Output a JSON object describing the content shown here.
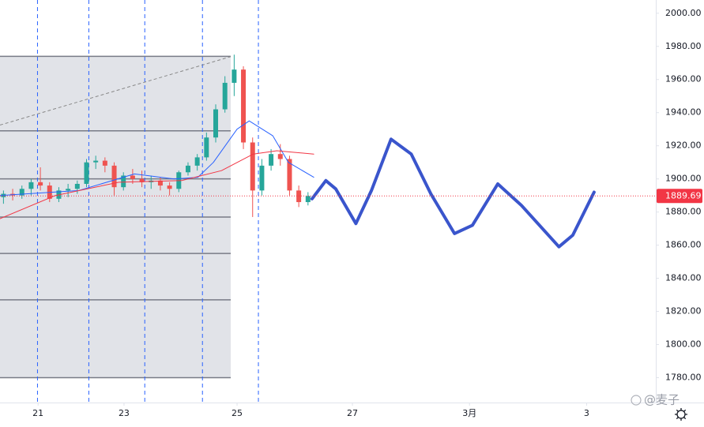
{
  "chart_data": {
    "type": "candlestick",
    "xlim": [
      -0.66,
      10.71
    ],
    "ylim": [
      1765,
      2008
    ],
    "xticks": [
      {
        "value": 0,
        "label": "21"
      },
      {
        "value": 1.49,
        "label": "23"
      },
      {
        "value": 3.45,
        "label": "25"
      },
      {
        "value": 5.45,
        "label": "27"
      },
      {
        "value": 7.48,
        "label": "3月"
      },
      {
        "value": 9.51,
        "label": "3"
      }
    ],
    "yticks": [
      {
        "value": 1780,
        "label": "1780.00"
      },
      {
        "value": 1800,
        "label": "1800.00"
      },
      {
        "value": 1820,
        "label": "1820.00"
      },
      {
        "value": 1840,
        "label": "1840.00"
      },
      {
        "value": 1860,
        "label": "1860.00"
      },
      {
        "value": 1880,
        "label": "1880.00"
      },
      {
        "value": 1900,
        "label": "1900.00"
      },
      {
        "value": 1920,
        "label": "1920.00"
      },
      {
        "value": 1940,
        "label": "1940.00"
      },
      {
        "value": 1960,
        "label": "1960.00"
      },
      {
        "value": 1980,
        "label": "1980.00"
      },
      {
        "value": 2000,
        "label": "2000.00"
      }
    ],
    "grid": false,
    "up_color": "#26a69a",
    "down_color": "#ef5350",
    "candles": {
      "x": [
        -0.6,
        -0.44,
        -0.28,
        -0.12,
        0.04,
        0.2,
        0.36,
        0.52,
        0.68,
        0.84,
        1.0,
        1.16,
        1.32,
        1.48,
        1.64,
        1.8,
        1.96,
        2.12,
        2.28,
        2.44,
        2.6,
        2.76,
        2.92,
        3.08,
        3.24,
        3.4,
        3.56,
        3.72,
        3.88,
        4.04,
        4.2,
        4.36,
        4.52,
        4.68
      ],
      "open": [
        1889,
        1891,
        1890,
        1894,
        1898,
        1896,
        1888,
        1893,
        1894,
        1897,
        1910,
        1911,
        1908,
        1895,
        1902,
        1900,
        1898,
        1899,
        1896,
        1894,
        1904,
        1908,
        1913,
        1925,
        1942,
        1958,
        1966,
        1922,
        1893,
        1908,
        1915,
        1912,
        1893,
        1886
      ],
      "high": [
        1893,
        1894,
        1896,
        1900,
        1907,
        1898,
        1895,
        1897,
        1899,
        1912,
        1914,
        1913,
        1910,
        1904,
        1906,
        1905,
        1902,
        1901,
        1898,
        1905,
        1910,
        1915,
        1928,
        1945,
        1962,
        1975,
        1968,
        1925,
        1912,
        1918,
        1921,
        1914,
        1896,
        1892
      ],
      "low": [
        1885,
        1887,
        1888,
        1890,
        1893,
        1886,
        1886,
        1889,
        1891,
        1895,
        1906,
        1904,
        1890,
        1893,
        1897,
        1895,
        1894,
        1893,
        1890,
        1892,
        1902,
        1905,
        1911,
        1922,
        1940,
        1950,
        1918,
        1877,
        1890,
        1905,
        1908,
        1890,
        1883,
        1884
      ],
      "close": [
        1891,
        1890,
        1894,
        1898,
        1896,
        1888,
        1893,
        1894,
        1897,
        1910,
        1911,
        1908,
        1895,
        1902,
        1900,
        1898,
        1899,
        1896,
        1894,
        1904,
        1908,
        1913,
        1925,
        1942,
        1958,
        1966,
        1922,
        1893,
        1908,
        1915,
        1912,
        1893,
        1886,
        1889.69
      ]
    },
    "moving_averages": [
      {
        "color": "#2962ff",
        "x": [
          -0.66,
          0.71,
          1.67,
          2.36,
          2.77,
          3.04,
          3.45,
          3.66,
          4.07,
          4.34,
          4.78
        ],
        "values": [
          1890,
          1893,
          1903,
          1900,
          1901,
          1910,
          1930,
          1935,
          1926,
          1910,
          1901
        ]
      },
      {
        "color": "#f23645",
        "x": [
          -0.66,
          0.3,
          1.4,
          2.49,
          3.18,
          3.73,
          4.14,
          4.78
        ],
        "values": [
          1876,
          1890,
          1898,
          1899,
          1905,
          1915,
          1917,
          1915
        ]
      }
    ],
    "projection": {
      "color": "#3a55cc",
      "x": [
        4.75,
        4.99,
        5.16,
        5.51,
        5.78,
        6.12,
        6.47,
        6.81,
        7.22,
        7.53,
        7.97,
        8.38,
        9.03,
        9.27,
        9.64
      ],
      "values": [
        1888,
        1899,
        1894,
        1873,
        1893,
        1924,
        1915,
        1891,
        1867,
        1872,
        1897,
        1884,
        1859,
        1866,
        1892
      ]
    },
    "range_box": {
      "x_end": 3.34,
      "levels": [
        1974,
        1929,
        1900,
        1877,
        1855,
        1827,
        1780
      ]
    },
    "trend_line": {
      "x": [
        -0.66,
        3.34
      ],
      "values": [
        1932.5,
        1973.8
      ]
    },
    "session_lines": [
      -0.01,
      0.88,
      1.85,
      2.85,
      3.82
    ],
    "last_price": 1889.69,
    "last_price_color": "#f23645",
    "watermark": "@麦子"
  }
}
